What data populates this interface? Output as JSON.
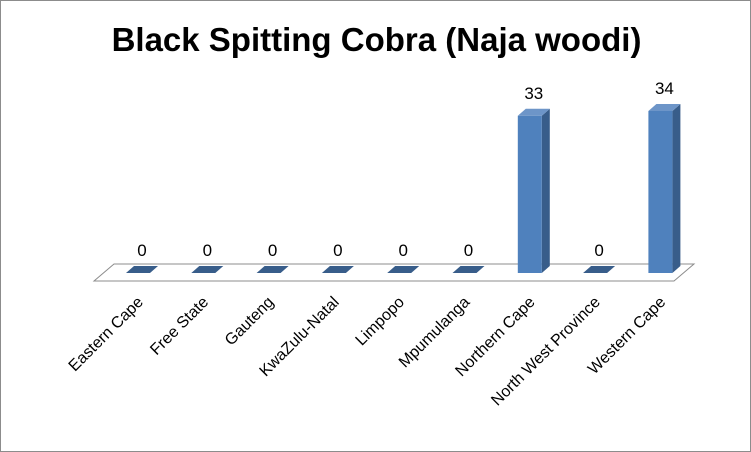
{
  "chart_data": {
    "type": "bar",
    "title": "Black Spitting Cobra (Naja woodi)",
    "xlabel": "",
    "ylabel": "",
    "categories": [
      "Eastern Cape",
      "Free State",
      "Gauteng",
      "KwaZulu-Natal",
      "Limpopo",
      "Mpumulanga",
      "Northern Cape",
      "North West Province",
      "Western Cape"
    ],
    "values": [
      0,
      0,
      0,
      0,
      0,
      0,
      33,
      0,
      34
    ],
    "ylim": [
      0,
      34
    ],
    "grid": false,
    "legend": "none",
    "bar_color": "#4f81bd",
    "bar_side_color": "#385d8a",
    "bar_top_color": "#6d95c8"
  }
}
